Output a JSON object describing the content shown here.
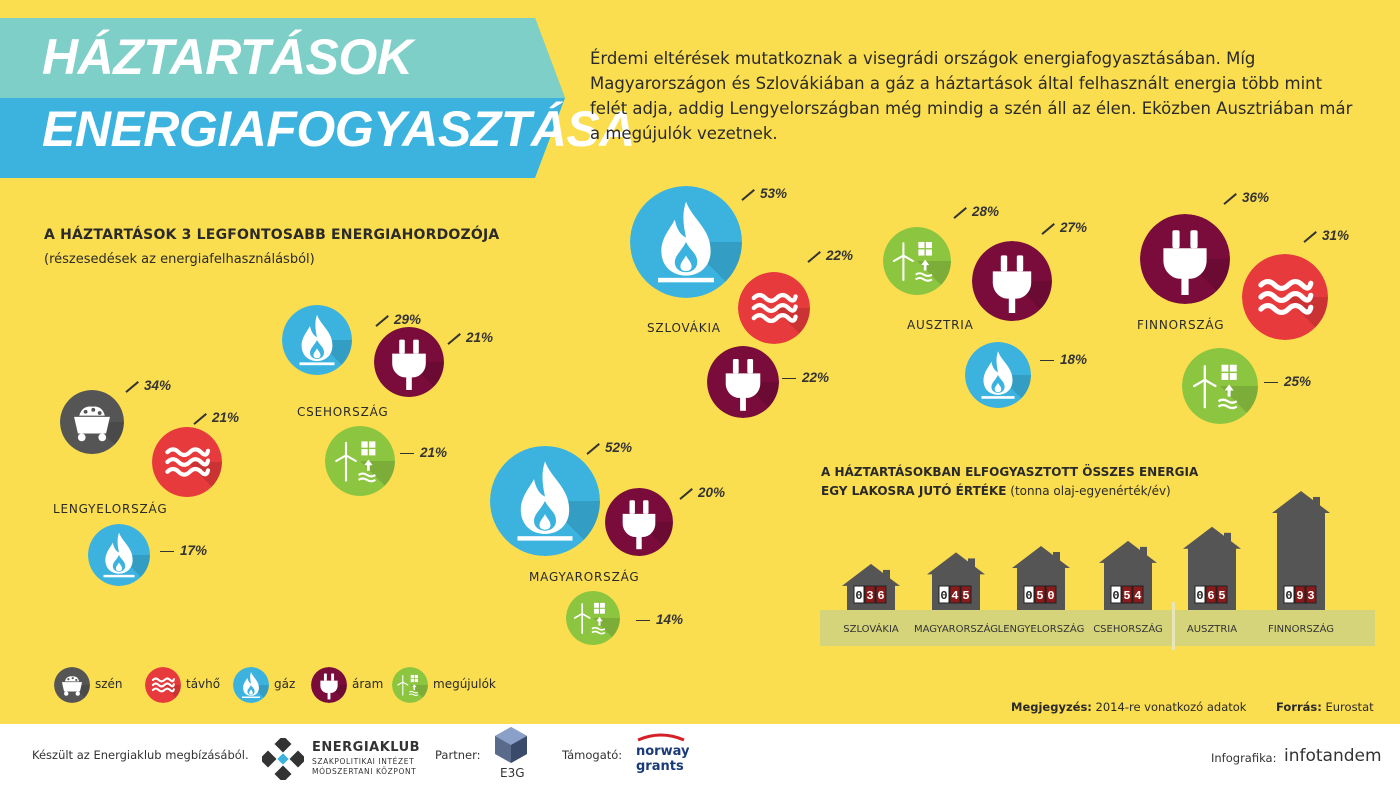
{
  "header": {
    "title_line1": "HÁZTARTÁSOK",
    "title_line2": "ENERGIAFOGYASZTÁSA",
    "intro": "Érdemi eltérések mutatkoznak a visegrádi országok energiafogyasztásában. Míg Magyarországon és Szlovákiában a gáz a háztartások által felhasznált energia több mint felét adja, addig Lengyelországban még mindig a szén áll az élen. Eközben Ausztriában már a megújulók vezetnek."
  },
  "colors": {
    "background": "#fbde4f",
    "banner_light": "#7ecfc8",
    "banner_dark": "#3bb3de",
    "coal": "#555555",
    "district_heating": "#e63a3c",
    "gas": "#3bb3de",
    "electricity": "#7a0c3b",
    "renewables": "#8cc540",
    "house": "#555555",
    "ground": "#d6d47a"
  },
  "section1": {
    "title": "A HÁZTARTÁSOK 3 LEGFONTOSABB ENERGIAHORDOZÓJA",
    "caption": "(részesedések az energiafelhasználásból)"
  },
  "chart_data": [
    {
      "type": "bubble",
      "title": "A HÁZTARTÁSOK 3 LEGFONTOSABB ENERGIAHORDOZÓJA",
      "subtitle": "(részesedések az energiafelhasználásból)",
      "unit": "%",
      "countries": [
        {
          "name": "LENGYELORSZÁG",
          "sources": [
            {
              "type": "coal",
              "value": 34,
              "label": "34%"
            },
            {
              "type": "district_heating",
              "value": 21,
              "label": "21%"
            },
            {
              "type": "gas",
              "value": 17,
              "label": "17%"
            }
          ]
        },
        {
          "name": "CSEHORSZÁG",
          "sources": [
            {
              "type": "gas",
              "value": 29,
              "label": "29%"
            },
            {
              "type": "electricity",
              "value": 21,
              "label": "21%"
            },
            {
              "type": "renewables",
              "value": 21,
              "label": "21%"
            }
          ]
        },
        {
          "name": "MAGYARORSZÁG",
          "sources": [
            {
              "type": "gas",
              "value": 52,
              "label": "52%"
            },
            {
              "type": "electricity",
              "value": 20,
              "label": "20%"
            },
            {
              "type": "renewables",
              "value": 14,
              "label": "14%"
            }
          ]
        },
        {
          "name": "SZLOVÁKIA",
          "sources": [
            {
              "type": "gas",
              "value": 53,
              "label": "53%"
            },
            {
              "type": "district_heating",
              "value": 22,
              "label": "22%"
            },
            {
              "type": "electricity",
              "value": 22,
              "label": "22%"
            }
          ]
        },
        {
          "name": "AUSZTRIA",
          "sources": [
            {
              "type": "renewables",
              "value": 28,
              "label": "28%"
            },
            {
              "type": "electricity",
              "value": 27,
              "label": "27%"
            },
            {
              "type": "gas",
              "value": 18,
              "label": "18%"
            }
          ]
        },
        {
          "name": "FINNORSZÁG",
          "sources": [
            {
              "type": "electricity",
              "value": 36,
              "label": "36%"
            },
            {
              "type": "district_heating",
              "value": 31,
              "label": "31%"
            },
            {
              "type": "renewables",
              "value": 25,
              "label": "25%"
            }
          ]
        }
      ]
    },
    {
      "type": "bar",
      "title": "A HÁZTARTÁSOKBAN ELFOGYASZTOTT ÖSSZES ENERGIA EGY LAKOSRA JUTÓ ÉRTÉKE",
      "unit": "(tonna olaj-egyenérték/év)",
      "categories": [
        "SZLOVÁKIA",
        "MAGYARORSZÁG",
        "LENGYELORSZÁG",
        "CSEHORSZÁG",
        "AUSZTRIA",
        "FINNORSZÁG"
      ],
      "values": [
        0.36,
        0.45,
        0.5,
        0.54,
        0.65,
        0.93
      ],
      "meter_digits": [
        [
          "0",
          "3",
          "6"
        ],
        [
          "0",
          "4",
          "5"
        ],
        [
          "0",
          "5",
          "0"
        ],
        [
          "0",
          "5",
          "4"
        ],
        [
          "0",
          "6",
          "5"
        ],
        [
          "0",
          "9",
          "3"
        ]
      ]
    }
  ],
  "bar_section": {
    "title_line1": "A HÁZTARTÁSOKBAN ELFOGYASZTOTT ÖSSZES ENERGIA",
    "title_line2_bold": "EGY LAKOSRA JUTÓ ÉRTÉKE",
    "title_line2_unit": "(tonna olaj-egyenérték/év)"
  },
  "legend": [
    {
      "type": "coal",
      "label": "szén"
    },
    {
      "type": "district_heating",
      "label": "távhő"
    },
    {
      "type": "gas",
      "label": "gáz"
    },
    {
      "type": "electricity",
      "label": "áram"
    },
    {
      "type": "renewables",
      "label": "megújulók"
    }
  ],
  "notes": {
    "note_label": "Megjegyzés:",
    "note_text": "2014-re vonatkozó adatok",
    "source_label": "Forrás:",
    "source_text": "Eurostat"
  },
  "footer": {
    "commissioned": "Készült az Energiaklub megbízásából.",
    "energiaklub_name": "ENERGIAKLUB",
    "energiaklub_sub1": "SZAKPOLITIKAI INTÉZET",
    "energiaklub_sub2": "MÓDSZERTANI KÖZPONT",
    "partner_label": "Partner:",
    "e3g": "E3G",
    "supporter_label": "Támogató:",
    "norway1": "norway",
    "norway2": "grants",
    "infografika_label": "Infografika:",
    "infotandem": "infotandem"
  }
}
